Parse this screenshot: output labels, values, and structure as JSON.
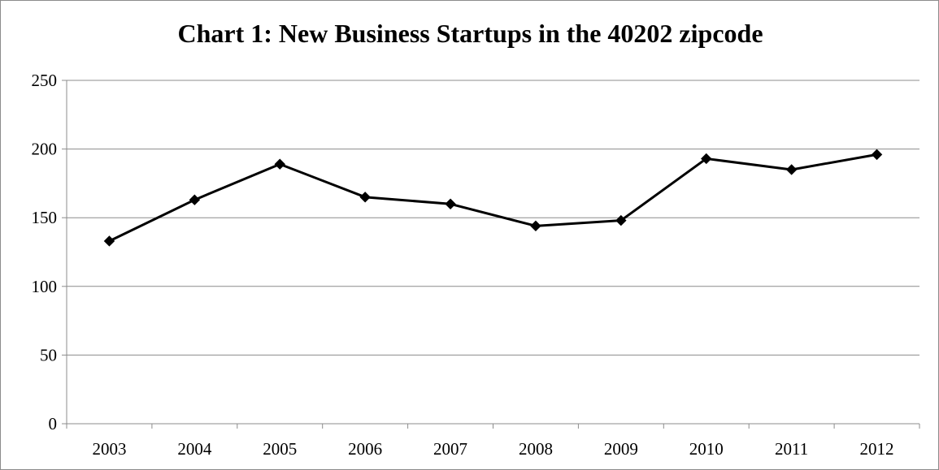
{
  "chart_data": {
    "type": "line",
    "title": "Chart 1: New Business Startups in the 40202 zipcode",
    "xlabel": "",
    "ylabel": "",
    "categories": [
      "2003",
      "2004",
      "2005",
      "2006",
      "2007",
      "2008",
      "2009",
      "2010",
      "2011",
      "2012"
    ],
    "series": [
      {
        "values": [
          133,
          163,
          189,
          165,
          160,
          144,
          148,
          193,
          185,
          196
        ]
      }
    ],
    "ylim": [
      0,
      250
    ],
    "yticks": [
      0,
      50,
      100,
      150,
      200,
      250
    ],
    "grid": "horizontal",
    "legend": "none",
    "colors": {
      "line": "#000000",
      "marker": "#000000",
      "grid": "#8c8c8c",
      "axis": "#8c8c8c"
    },
    "marker": "diamond"
  }
}
